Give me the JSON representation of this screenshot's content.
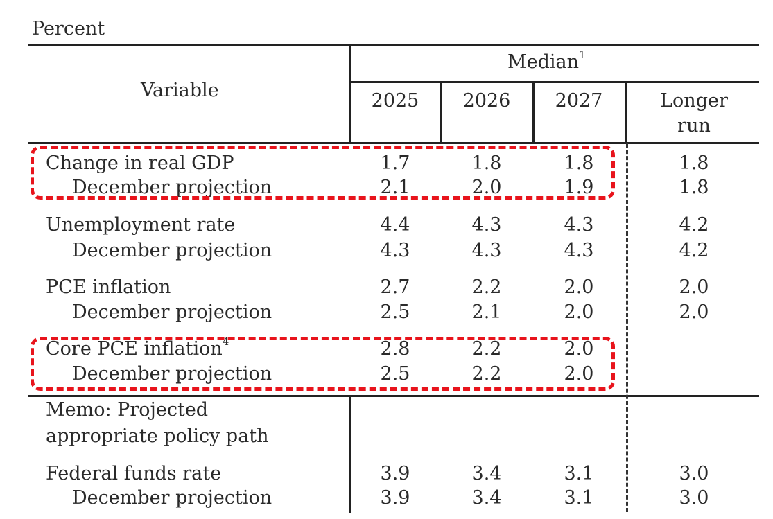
{
  "unit_label": "Percent",
  "header": {
    "variable": "Variable",
    "median": "Median",
    "median_note": "1",
    "years": [
      "2025",
      "2026",
      "2027"
    ],
    "longer_run_line1": "Longer",
    "longer_run_line2": "run"
  },
  "rows": {
    "gdp": {
      "label": "Change in real GDP",
      "values": [
        "1.7",
        "1.8",
        "1.8",
        "1.8"
      ]
    },
    "gdp_dec": {
      "label": "December projection",
      "values": [
        "2.1",
        "2.0",
        "1.9",
        "1.8"
      ]
    },
    "unemp": {
      "label": "Unemployment rate",
      "values": [
        "4.4",
        "4.3",
        "4.3",
        "4.2"
      ]
    },
    "unemp_dec": {
      "label": "December projection",
      "values": [
        "4.3",
        "4.3",
        "4.3",
        "4.2"
      ]
    },
    "pce": {
      "label": "PCE inflation",
      "values": [
        "2.7",
        "2.2",
        "2.0",
        "2.0"
      ]
    },
    "pce_dec": {
      "label": "December projection",
      "values": [
        "2.5",
        "2.1",
        "2.0",
        "2.0"
      ]
    },
    "core": {
      "label": "Core PCE inflation",
      "note": "4",
      "values": [
        "2.8",
        "2.2",
        "2.0",
        ""
      ]
    },
    "core_dec": {
      "label": "December projection",
      "values": [
        "2.5",
        "2.2",
        "2.0",
        ""
      ]
    },
    "ffr": {
      "label": "Federal funds rate",
      "values": [
        "3.9",
        "3.4",
        "3.1",
        "3.0"
      ]
    },
    "ffr_dec": {
      "label": "December projection",
      "values": [
        "3.9",
        "3.4",
        "3.1",
        "3.0"
      ]
    }
  },
  "memo": {
    "line1": "Memo: Projected",
    "line2": "appropriate policy path"
  },
  "colors": {
    "highlight": "#e8141c",
    "rule": "#222222"
  }
}
